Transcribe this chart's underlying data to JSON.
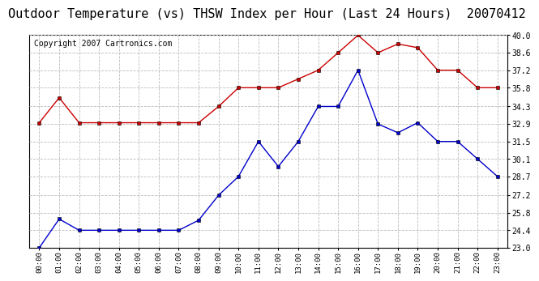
{
  "title": "Outdoor Temperature (vs) THSW Index per Hour (Last 24 Hours)  20070412",
  "copyright": "Copyright 2007 Cartronics.com",
  "x_labels": [
    "00:00",
    "01:00",
    "02:00",
    "03:00",
    "04:00",
    "05:00",
    "06:00",
    "07:00",
    "08:00",
    "09:00",
    "10:00",
    "11:00",
    "12:00",
    "13:00",
    "14:00",
    "15:00",
    "16:00",
    "17:00",
    "18:00",
    "19:00",
    "20:00",
    "21:00",
    "22:00",
    "23:00"
  ],
  "temp_blue": [
    23.0,
    25.3,
    24.4,
    24.4,
    24.4,
    24.4,
    24.4,
    24.4,
    25.2,
    27.2,
    28.7,
    31.5,
    29.5,
    31.5,
    34.3,
    34.3,
    37.2,
    32.9,
    32.2,
    33.0,
    31.5,
    31.5,
    30.1,
    28.7
  ],
  "thsw_red": [
    33.0,
    35.0,
    33.0,
    33.0,
    33.0,
    33.0,
    33.0,
    33.0,
    33.0,
    34.3,
    35.8,
    35.8,
    35.8,
    36.5,
    37.2,
    38.6,
    40.0,
    38.6,
    39.3,
    39.0,
    37.2,
    37.2,
    35.8,
    35.8
  ],
  "ylim_min": 23.0,
  "ylim_max": 40.0,
  "yticks": [
    23.0,
    24.4,
    25.8,
    27.2,
    28.7,
    30.1,
    31.5,
    32.9,
    34.3,
    35.8,
    37.2,
    38.6,
    40.0
  ],
  "blue_color": "#0000cc",
  "red_color": "#cc0000",
  "bg_color": "#ffffff",
  "grid_color": "#bbbbbb",
  "title_fontsize": 11,
  "copyright_fontsize": 7
}
